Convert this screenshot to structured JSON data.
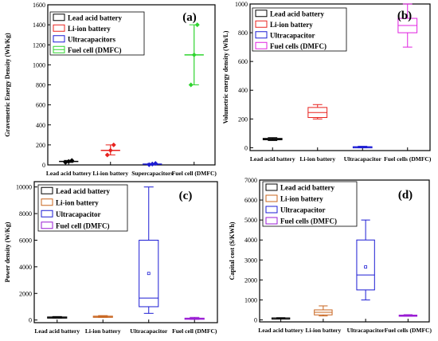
{
  "chart_data": [
    {
      "type": "box",
      "panel_label": "(a)",
      "title": "",
      "xlabel": "",
      "ylabel": "Gravemetric Energy Density (Wh/Kg)",
      "ylim": [
        0,
        1600
      ],
      "yticks": [
        0,
        200,
        400,
        600,
        800,
        1000,
        1200,
        1400,
        1600
      ],
      "categories": [
        "Lead acid battery",
        "Li-ion battery",
        "Supercapacitors",
        "Fuel cell (DMFC)"
      ],
      "series": [
        {
          "name": "Lead acid battery",
          "color": "#000000",
          "min": 25,
          "q1": 30,
          "median": 35,
          "q3": 38,
          "max": 45,
          "points": [
            25,
            35,
            45
          ]
        },
        {
          "name": "Li-ion battery",
          "color": "#e8221e",
          "min": 100,
          "q1": 140,
          "median": 145,
          "q3": 150,
          "max": 200,
          "points": [
            100,
            145,
            200
          ]
        },
        {
          "name": "Ultracapacitors",
          "color": "#1c1cd4",
          "min": 2,
          "q1": 5,
          "median": 8,
          "q3": 12,
          "max": 15,
          "points": [
            2,
            8,
            15
          ]
        },
        {
          "name": "Fuel cell (DMFC)",
          "color": "#2fd42f",
          "min": 800,
          "q1": 1100,
          "median": 1100,
          "q3": 1100,
          "max": 1400,
          "points": [
            800,
            1100,
            1400
          ]
        }
      ],
      "legend_position": "top-left"
    },
    {
      "type": "box",
      "panel_label": "(b)",
      "title": "",
      "xlabel": "",
      "ylabel": "Volumetric energy density (Wh/L)",
      "ylim": [
        -20,
        1000
      ],
      "yticks": [
        0,
        200,
        400,
        600,
        800,
        1000
      ],
      "categories": [
        "Lead acid battery",
        "Li-ion battery",
        "Ultracapacitor",
        "Fuel cells (DMFC)"
      ],
      "series": [
        {
          "name": "Lead acid battery",
          "color": "#000000",
          "min": 50,
          "q1": 55,
          "median": 60,
          "q3": 65,
          "max": 70
        },
        {
          "name": "Li-ion battery",
          "color": "#e8221e",
          "min": 200,
          "q1": 210,
          "median": 245,
          "q3": 280,
          "max": 300
        },
        {
          "name": "Ultracapacitor",
          "color": "#1c1cd4",
          "min": 1,
          "q1": 3,
          "median": 5,
          "q3": 7,
          "max": 10
        },
        {
          "name": "Fuel cells (DMFC)",
          "color": "#e020e0",
          "min": 700,
          "q1": 800,
          "median": 850,
          "q3": 900,
          "max": 1000
        }
      ],
      "legend_position": "top-left"
    },
    {
      "type": "box",
      "panel_label": "(c)",
      "title": "",
      "xlabel": "",
      "ylabel": "Power density (W/Kg)",
      "ylim": [
        -200,
        10400
      ],
      "yticks": [
        0,
        2000,
        4000,
        6000,
        8000,
        10000
      ],
      "categories": [
        "Lead acid battery",
        "Li-ion battery",
        "Ultracapacitor",
        "Fuel cell (DMFC)"
      ],
      "series": [
        {
          "name": "Lead acid battery",
          "color": "#000000",
          "min": 150,
          "q1": 180,
          "median": 200,
          "q3": 230,
          "max": 260
        },
        {
          "name": "Li-ion battery",
          "color": "#c8641e",
          "min": 200,
          "q1": 230,
          "median": 260,
          "q3": 290,
          "max": 330
        },
        {
          "name": "Ultracapacitor",
          "color": "#1c1cd4",
          "min": 500,
          "q1": 1000,
          "median": 1650,
          "q3": 6000,
          "max": 10000,
          "mean": 3500
        },
        {
          "name": "Fuel cell (DMFC)",
          "color": "#9a1cd4",
          "min": 50,
          "q1": 90,
          "median": 110,
          "q3": 140,
          "max": 200
        }
      ],
      "legend_position": "top-left"
    },
    {
      "type": "box",
      "panel_label": "(d)",
      "title": "",
      "xlabel": "",
      "ylabel": "Capital cost ($/KWh)",
      "ylim": [
        -100,
        7000
      ],
      "yticks": [
        0,
        1000,
        2000,
        3000,
        4000,
        5000,
        6000,
        7000
      ],
      "categories": [
        "Lead acid battery",
        "Li-ion battery",
        "Ultracapacitor",
        "Fuel cells (DMFC)"
      ],
      "series": [
        {
          "name": "Lead acid battery",
          "color": "#000000",
          "min": 70,
          "q1": 80,
          "median": 90,
          "q3": 100,
          "max": 110
        },
        {
          "name": "Li-ion battery",
          "color": "#c8641e",
          "min": 200,
          "q1": 250,
          "median": 380,
          "q3": 500,
          "max": 700
        },
        {
          "name": "Ultracapacitor",
          "color": "#1c1cd4",
          "min": 1000,
          "q1": 1500,
          "median": 2250,
          "q3": 4000,
          "max": 5000,
          "mean": 2650
        },
        {
          "name": "Fuel cells (DMFC)",
          "color": "#9a1cd4",
          "min": 180,
          "q1": 200,
          "median": 220,
          "q3": 240,
          "max": 260
        }
      ],
      "legend_position": "top-left"
    }
  ]
}
